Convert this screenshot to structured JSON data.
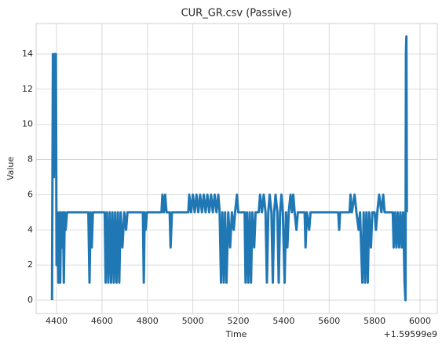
{
  "chart_data": {
    "type": "line",
    "title": "CUR_GR.csv (Passive)",
    "xlabel": "Time",
    "ylabel": "Value",
    "x_offset_label": "+1.59599e9",
    "color": "#1f77b4",
    "grid": true,
    "xlim": [
      4310,
      6076
    ],
    "ylim": [
      -0.76,
      15.74
    ],
    "xticks": [
      4400,
      4600,
      4800,
      5000,
      5200,
      5400,
      5600,
      5800,
      6000
    ],
    "yticks": [
      0,
      2,
      4,
      6,
      8,
      10,
      12,
      14
    ],
    "x": [
      4380,
      4384,
      4388,
      4392,
      4397,
      4400,
      4404,
      4408,
      4412,
      4416,
      4420,
      4424,
      4428,
      4432,
      4436,
      4440,
      4446,
      4540,
      4545,
      4550,
      4555,
      4560,
      4612,
      4616,
      4622,
      4628,
      4634,
      4640,
      4646,
      4652,
      4658,
      4664,
      4670,
      4676,
      4682,
      4690,
      4698,
      4706,
      4712,
      4780,
      4784,
      4788,
      4792,
      4798,
      4862,
      4866,
      4872,
      4878,
      4884,
      4898,
      4902,
      4908,
      4980,
      4984,
      4992,
      5000,
      5008,
      5016,
      5024,
      5032,
      5040,
      5048,
      5056,
      5064,
      5072,
      5080,
      5088,
      5096,
      5104,
      5112,
      5118,
      5124,
      5130,
      5136,
      5142,
      5148,
      5156,
      5164,
      5172,
      5180,
      5186,
      5194,
      5200,
      5228,
      5232,
      5238,
      5244,
      5250,
      5256,
      5262,
      5270,
      5276,
      5290,
      5296,
      5304,
      5312,
      5320,
      5326,
      5332,
      5338,
      5346,
      5352,
      5358,
      5364,
      5372,
      5378,
      5384,
      5390,
      5396,
      5404,
      5410,
      5416,
      5422,
      5430,
      5436,
      5442,
      5448,
      5456,
      5462,
      5492,
      5496,
      5502,
      5512,
      5518,
      5640,
      5644,
      5648,
      5690,
      5694,
      5700,
      5712,
      5720,
      5730,
      5736,
      5746,
      5752,
      5758,
      5764,
      5770,
      5776,
      5784,
      5790,
      5800,
      5806,
      5812,
      5820,
      5830,
      5838,
      5844,
      5880,
      5884,
      5890,
      5896,
      5902,
      5908,
      5914,
      5920,
      5926,
      5932,
      5936,
      5938,
      5940,
      5942
    ],
    "values": [
      0,
      14,
      7,
      14,
      14,
      2,
      5,
      1,
      5,
      1,
      5,
      3,
      5,
      1,
      5,
      4,
      5,
      5,
      1,
      5,
      3,
      5,
      5,
      1,
      5,
      1,
      5,
      1,
      5,
      1,
      5,
      1,
      5,
      1,
      5,
      3,
      5,
      4,
      5,
      5,
      1,
      5,
      4,
      5,
      5,
      6,
      5,
      6,
      5,
      5,
      3,
      5,
      5,
      6,
      5,
      6,
      5,
      6,
      5,
      6,
      5,
      6,
      5,
      6,
      5,
      6,
      5,
      6,
      5,
      6,
      5,
      1,
      5,
      1,
      5,
      1,
      5,
      3,
      5,
      4,
      5,
      6,
      5,
      5,
      1,
      5,
      1,
      5,
      1,
      5,
      3,
      5,
      5,
      6,
      5,
      6,
      5,
      1,
      5,
      6,
      5,
      1,
      5,
      6,
      5,
      1,
      5,
      6,
      5,
      1,
      5,
      3,
      5,
      6,
      5,
      6,
      5,
      4,
      5,
      5,
      3,
      5,
      4,
      5,
      5,
      4,
      5,
      5,
      6,
      5,
      6,
      5,
      4,
      5,
      1,
      5,
      1,
      5,
      1,
      5,
      3,
      5,
      5,
      4,
      5,
      6,
      5,
      6,
      5,
      5,
      3,
      5,
      3,
      5,
      3,
      5,
      3,
      5,
      1,
      0,
      14,
      15,
      5
    ]
  }
}
